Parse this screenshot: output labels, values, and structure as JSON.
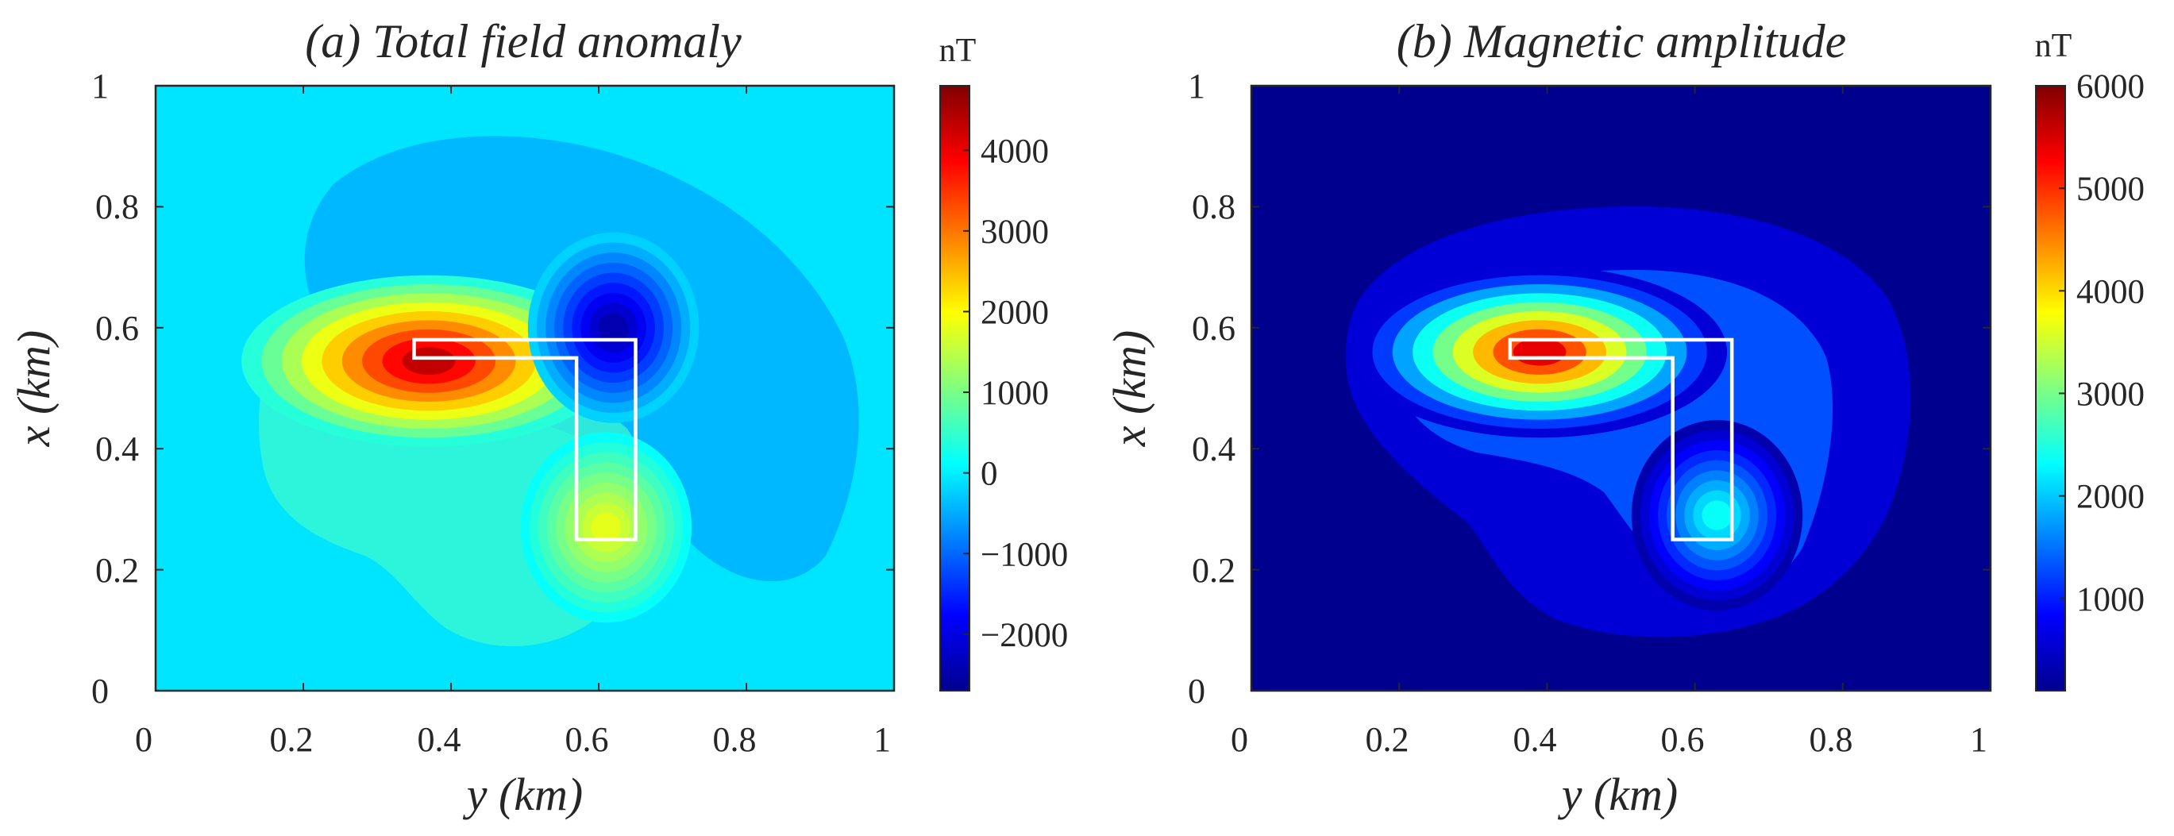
{
  "chart_data": [
    {
      "type": "heatmap",
      "title": "(a) Total field anomaly",
      "xlabel": "y (km)",
      "ylabel": "x (km)",
      "xlim": [
        0,
        1
      ],
      "ylim": [
        0,
        1
      ],
      "x_ticks": [
        "0",
        "0.2",
        "0.4",
        "0.6",
        "0.8",
        "1"
      ],
      "y_ticks": [
        "0",
        "0.2",
        "0.4",
        "0.6",
        "0.8",
        "1"
      ],
      "colormap": "jet",
      "colorbar": {
        "unit": "nT",
        "range": [
          -2700,
          4800
        ],
        "ticks": [
          4000,
          3000,
          2000,
          1000,
          0,
          -1000,
          -2000
        ],
        "tick_labels": [
          "4000",
          "3000",
          "2000",
          "1000",
          "0",
          "−1000",
          "−2000"
        ]
      },
      "features": [
        {
          "label": "positive peak",
          "y_km": 0.37,
          "x_km": 0.545,
          "value_nT": 4800
        },
        {
          "label": "negative trough",
          "y_km": 0.62,
          "x_km": 0.6,
          "value_nT": -2700
        },
        {
          "label": "secondary positive",
          "y_km": 0.61,
          "x_km": 0.27,
          "value_nT": 2000
        }
      ],
      "source_outline_km": [
        [
          0.35,
          0.58
        ],
        [
          0.65,
          0.58
        ],
        [
          0.65,
          0.25
        ],
        [
          0.57,
          0.25
        ],
        [
          0.57,
          0.55
        ],
        [
          0.35,
          0.55
        ]
      ]
    },
    {
      "type": "heatmap",
      "title": "(b) Magnetic amplitude",
      "xlabel": "y (km)",
      "ylabel": "x (km)",
      "xlim": [
        0,
        1
      ],
      "ylim": [
        0,
        1
      ],
      "x_ticks": [
        "0",
        "0.2",
        "0.4",
        "0.6",
        "0.8",
        "1"
      ],
      "y_ticks": [
        "0",
        "0.2",
        "0.4",
        "0.6",
        "0.8",
        "1"
      ],
      "colormap": "jet",
      "colorbar": {
        "unit": "nT",
        "range": [
          100,
          6000
        ],
        "ticks": [
          6000,
          5000,
          4000,
          3000,
          2000,
          1000
        ],
        "tick_labels": [
          "6000",
          "5000",
          "4000",
          "3000",
          "2000",
          "1000"
        ]
      },
      "features": [
        {
          "label": "amplitude peak",
          "y_km": 0.39,
          "x_km": 0.56,
          "value_nT": 6000
        },
        {
          "label": "lower limb maximum",
          "y_km": 0.63,
          "x_km": 0.29,
          "value_nT": 2600
        }
      ],
      "source_outline_km": [
        [
          0.35,
          0.58
        ],
        [
          0.65,
          0.58
        ],
        [
          0.65,
          0.25
        ],
        [
          0.57,
          0.25
        ],
        [
          0.57,
          0.55
        ],
        [
          0.35,
          0.55
        ]
      ]
    }
  ]
}
